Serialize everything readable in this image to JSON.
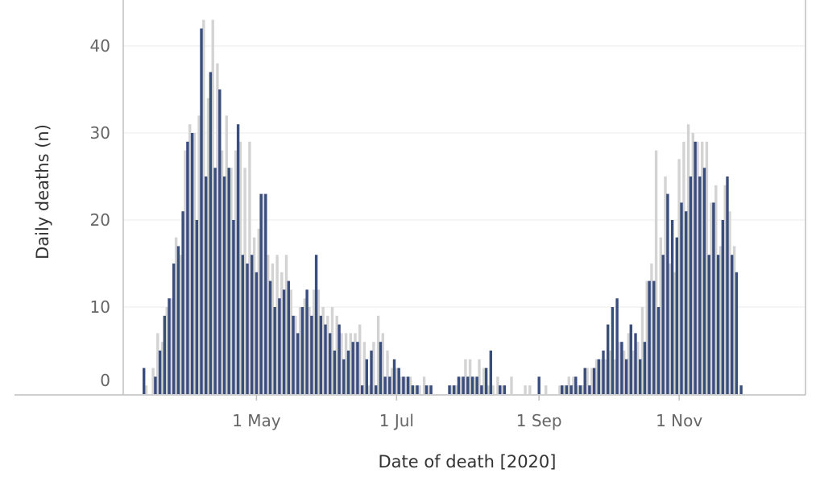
{
  "chart_data": {
    "type": "bar",
    "title": "",
    "xlabel": "Date of death [2020]",
    "ylabel": "Daily deaths (n)",
    "ylim": [
      0,
      45
    ],
    "yticks": [
      0,
      10,
      20,
      30,
      40
    ],
    "xlim": [
      "2020-03-04",
      "2020-12-26"
    ],
    "xticks": [
      {
        "date": "2020-05-01",
        "label": "1 May"
      },
      {
        "date": "2020-07-01",
        "label": "1 Jul"
      },
      {
        "date": "2020-09-01",
        "label": "1 Sep"
      },
      {
        "date": "2020-11-01",
        "label": "1 Nov"
      }
    ],
    "grid": true,
    "colors": {
      "series_a": "#3a4e7e",
      "series_b": "#d3d3d3"
    },
    "series": [
      {
        "values": [
          [
            "2020-03-13",
            3
          ],
          [
            "2020-03-18",
            2
          ],
          [
            "2020-03-20",
            5
          ],
          [
            "2020-03-22",
            9
          ],
          [
            "2020-03-24",
            11
          ],
          [
            "2020-03-26",
            15
          ],
          [
            "2020-03-28",
            17
          ],
          [
            "2020-03-30",
            21
          ],
          [
            "2020-04-01",
            29
          ],
          [
            "2020-04-03",
            30
          ],
          [
            "2020-04-05",
            20
          ],
          [
            "2020-04-07",
            42
          ],
          [
            "2020-04-09",
            25
          ],
          [
            "2020-04-11",
            37
          ],
          [
            "2020-04-13",
            26
          ],
          [
            "2020-04-15",
            35
          ],
          [
            "2020-04-17",
            25
          ],
          [
            "2020-04-19",
            26
          ],
          [
            "2020-04-21",
            20
          ],
          [
            "2020-04-23",
            31
          ],
          [
            "2020-04-25",
            16
          ],
          [
            "2020-04-27",
            15
          ],
          [
            "2020-04-29",
            16
          ],
          [
            "2020-05-01",
            14
          ],
          [
            "2020-05-03",
            23
          ],
          [
            "2020-05-05",
            23
          ],
          [
            "2020-05-07",
            13
          ],
          [
            "2020-05-09",
            10
          ],
          [
            "2020-05-11",
            11
          ],
          [
            "2020-05-13",
            12
          ],
          [
            "2020-05-15",
            13
          ],
          [
            "2020-05-17",
            9
          ],
          [
            "2020-05-19",
            7
          ],
          [
            "2020-05-21",
            10
          ],
          [
            "2020-05-23",
            12
          ],
          [
            "2020-05-25",
            9
          ],
          [
            "2020-05-27",
            16
          ],
          [
            "2020-05-29",
            9
          ],
          [
            "2020-05-31",
            8
          ],
          [
            "2020-06-02",
            7
          ],
          [
            "2020-06-04",
            5
          ],
          [
            "2020-06-06",
            8
          ],
          [
            "2020-06-08",
            4
          ],
          [
            "2020-06-10",
            5
          ],
          [
            "2020-06-12",
            6
          ],
          [
            "2020-06-14",
            6
          ],
          [
            "2020-06-16",
            1
          ],
          [
            "2020-06-18",
            4
          ],
          [
            "2020-06-20",
            5
          ],
          [
            "2020-06-22",
            1
          ],
          [
            "2020-06-24",
            6
          ],
          [
            "2020-06-26",
            2
          ],
          [
            "2020-06-28",
            2
          ],
          [
            "2020-06-30",
            4
          ],
          [
            "2020-07-02",
            3
          ],
          [
            "2020-07-04",
            2
          ],
          [
            "2020-07-06",
            2
          ],
          [
            "2020-07-08",
            1
          ],
          [
            "2020-07-10",
            1
          ],
          [
            "2020-07-14",
            1
          ],
          [
            "2020-07-16",
            1
          ],
          [
            "2020-07-24",
            1
          ],
          [
            "2020-07-26",
            1
          ],
          [
            "2020-07-28",
            2
          ],
          [
            "2020-07-30",
            2
          ],
          [
            "2020-08-01",
            2
          ],
          [
            "2020-08-03",
            2
          ],
          [
            "2020-08-05",
            2
          ],
          [
            "2020-08-07",
            1
          ],
          [
            "2020-08-09",
            3
          ],
          [
            "2020-08-11",
            5
          ],
          [
            "2020-08-15",
            1
          ],
          [
            "2020-08-17",
            1
          ],
          [
            "2020-09-01",
            2
          ],
          [
            "2020-09-11",
            1
          ],
          [
            "2020-09-13",
            1
          ],
          [
            "2020-09-15",
            1
          ],
          [
            "2020-09-17",
            2
          ],
          [
            "2020-09-19",
            1
          ],
          [
            "2020-09-21",
            3
          ],
          [
            "2020-09-23",
            1
          ],
          [
            "2020-09-25",
            3
          ],
          [
            "2020-09-27",
            4
          ],
          [
            "2020-09-29",
            5
          ],
          [
            "2020-10-01",
            8
          ],
          [
            "2020-10-03",
            10
          ],
          [
            "2020-10-05",
            11
          ],
          [
            "2020-10-07",
            6
          ],
          [
            "2020-10-09",
            4
          ],
          [
            "2020-10-11",
            8
          ],
          [
            "2020-10-13",
            7
          ],
          [
            "2020-10-15",
            4
          ],
          [
            "2020-10-17",
            6
          ],
          [
            "2020-10-19",
            13
          ],
          [
            "2020-10-21",
            13
          ],
          [
            "2020-10-23",
            10
          ],
          [
            "2020-10-25",
            16
          ],
          [
            "2020-10-27",
            23
          ],
          [
            "2020-10-29",
            20
          ],
          [
            "2020-10-31",
            18
          ],
          [
            "2020-11-02",
            22
          ],
          [
            "2020-11-04",
            21
          ],
          [
            "2020-11-06",
            25
          ],
          [
            "2020-11-08",
            29
          ],
          [
            "2020-11-10",
            25
          ],
          [
            "2020-11-12",
            26
          ],
          [
            "2020-11-14",
            16
          ],
          [
            "2020-11-16",
            22
          ],
          [
            "2020-11-18",
            16
          ],
          [
            "2020-11-20",
            20
          ],
          [
            "2020-11-22",
            25
          ],
          [
            "2020-11-24",
            16
          ],
          [
            "2020-11-26",
            14
          ],
          [
            "2020-11-28",
            1
          ]
        ]
      },
      {
        "values": [
          [
            "2020-03-14",
            1
          ],
          [
            "2020-03-17",
            3
          ],
          [
            "2020-03-19",
            7
          ],
          [
            "2020-03-21",
            6
          ],
          [
            "2020-03-23",
            10
          ],
          [
            "2020-03-25",
            11
          ],
          [
            "2020-03-27",
            18
          ],
          [
            "2020-03-29",
            16
          ],
          [
            "2020-03-31",
            28
          ],
          [
            "2020-04-02",
            31
          ],
          [
            "2020-04-04",
            30
          ],
          [
            "2020-04-06",
            32
          ],
          [
            "2020-04-08",
            43
          ],
          [
            "2020-04-10",
            34
          ],
          [
            "2020-04-12",
            43
          ],
          [
            "2020-04-14",
            38
          ],
          [
            "2020-04-16",
            28
          ],
          [
            "2020-04-18",
            32
          ],
          [
            "2020-04-20",
            26
          ],
          [
            "2020-04-22",
            28
          ],
          [
            "2020-04-24",
            29
          ],
          [
            "2020-04-26",
            26
          ],
          [
            "2020-04-28",
            29
          ],
          [
            "2020-04-30",
            18
          ],
          [
            "2020-05-02",
            19
          ],
          [
            "2020-05-04",
            23
          ],
          [
            "2020-05-06",
            16
          ],
          [
            "2020-05-08",
            15
          ],
          [
            "2020-05-10",
            16
          ],
          [
            "2020-05-12",
            14
          ],
          [
            "2020-05-14",
            16
          ],
          [
            "2020-05-16",
            12
          ],
          [
            "2020-05-18",
            9
          ],
          [
            "2020-05-20",
            10
          ],
          [
            "2020-05-22",
            11
          ],
          [
            "2020-05-24",
            10
          ],
          [
            "2020-05-26",
            12
          ],
          [
            "2020-05-28",
            12
          ],
          [
            "2020-05-30",
            10
          ],
          [
            "2020-06-01",
            9
          ],
          [
            "2020-06-03",
            10
          ],
          [
            "2020-06-05",
            9
          ],
          [
            "2020-06-07",
            7
          ],
          [
            "2020-06-09",
            7
          ],
          [
            "2020-06-11",
            7
          ],
          [
            "2020-06-13",
            7
          ],
          [
            "2020-06-15",
            8
          ],
          [
            "2020-06-17",
            6
          ],
          [
            "2020-06-19",
            1
          ],
          [
            "2020-06-21",
            6
          ],
          [
            "2020-06-23",
            9
          ],
          [
            "2020-06-25",
            7
          ],
          [
            "2020-06-27",
            5
          ],
          [
            "2020-06-29",
            3
          ],
          [
            "2020-07-01",
            3
          ],
          [
            "2020-07-03",
            2
          ],
          [
            "2020-07-05",
            2
          ],
          [
            "2020-07-07",
            2
          ],
          [
            "2020-07-09",
            1
          ],
          [
            "2020-07-11",
            1
          ],
          [
            "2020-07-13",
            2
          ],
          [
            "2020-07-15",
            1
          ],
          [
            "2020-07-25",
            1
          ],
          [
            "2020-07-27",
            1
          ],
          [
            "2020-07-29",
            2
          ],
          [
            "2020-07-31",
            4
          ],
          [
            "2020-08-02",
            4
          ],
          [
            "2020-08-04",
            2
          ],
          [
            "2020-08-06",
            4
          ],
          [
            "2020-08-08",
            3
          ],
          [
            "2020-08-10",
            1
          ],
          [
            "2020-08-12",
            1
          ],
          [
            "2020-08-14",
            2
          ],
          [
            "2020-08-16",
            1
          ],
          [
            "2020-08-20",
            2
          ],
          [
            "2020-08-26",
            1
          ],
          [
            "2020-08-28",
            1
          ],
          [
            "2020-09-04",
            1
          ],
          [
            "2020-09-10",
            1
          ],
          [
            "2020-09-12",
            1
          ],
          [
            "2020-09-14",
            2
          ],
          [
            "2020-09-16",
            2
          ],
          [
            "2020-09-18",
            1
          ],
          [
            "2020-09-20",
            1
          ],
          [
            "2020-09-22",
            3
          ],
          [
            "2020-09-24",
            3
          ],
          [
            "2020-09-26",
            4
          ],
          [
            "2020-09-28",
            4
          ],
          [
            "2020-09-30",
            4
          ],
          [
            "2020-10-02",
            5
          ],
          [
            "2020-10-04",
            4
          ],
          [
            "2020-10-06",
            6
          ],
          [
            "2020-10-08",
            5
          ],
          [
            "2020-10-10",
            7
          ],
          [
            "2020-10-12",
            5
          ],
          [
            "2020-10-14",
            6
          ],
          [
            "2020-10-16",
            10
          ],
          [
            "2020-10-18",
            13
          ],
          [
            "2020-10-20",
            15
          ],
          [
            "2020-10-22",
            28
          ],
          [
            "2020-10-24",
            18
          ],
          [
            "2020-10-26",
            25
          ],
          [
            "2020-10-28",
            15
          ],
          [
            "2020-10-30",
            14
          ],
          [
            "2020-11-01",
            27
          ],
          [
            "2020-11-03",
            29
          ],
          [
            "2020-11-05",
            31
          ],
          [
            "2020-11-07",
            30
          ],
          [
            "2020-11-09",
            29
          ],
          [
            "2020-11-11",
            29
          ],
          [
            "2020-11-13",
            29
          ],
          [
            "2020-11-15",
            22
          ],
          [
            "2020-11-17",
            24
          ],
          [
            "2020-11-19",
            17
          ],
          [
            "2020-11-21",
            24
          ],
          [
            "2020-11-23",
            21
          ],
          [
            "2020-11-25",
            17
          ]
        ]
      }
    ]
  }
}
